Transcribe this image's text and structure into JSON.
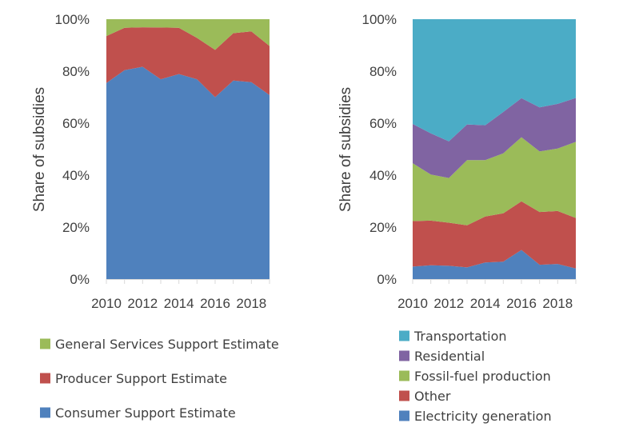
{
  "chart_data": [
    {
      "type": "area",
      "stacked": true,
      "title": "",
      "xlabel": "",
      "ylabel": "Share of subsidies",
      "x": [
        2010,
        2011,
        2012,
        2013,
        2014,
        2015,
        2016,
        2017,
        2018,
        2019
      ],
      "xticks": [
        "2010",
        "2012",
        "2014",
        "2016",
        "2018"
      ],
      "yticks": [
        "0%",
        "20%",
        "40%",
        "60%",
        "80%",
        "100%"
      ],
      "ylim": [
        0,
        100
      ],
      "grid": false,
      "legend_position": "bottom",
      "series": [
        {
          "name": "Consumer Support Estimate",
          "color": "#4f81bd",
          "values": [
            75.4,
            80.4,
            81.7,
            76.9,
            78.9,
            76.9,
            70.0,
            76.4,
            75.8,
            70.8
          ]
        },
        {
          "name": "Producer Support Estimate",
          "color": "#c0504d",
          "values": [
            18.1,
            16.3,
            15.2,
            19.9,
            17.8,
            15.9,
            18.2,
            18.2,
            19.5,
            18.9
          ]
        },
        {
          "name": "General Services Support Estimate",
          "color": "#9bbb59",
          "values": [
            6.5,
            3.3,
            3.1,
            3.2,
            3.3,
            7.2,
            11.8,
            5.4,
            4.7,
            10.3
          ]
        }
      ],
      "legend_order": [
        "General Services Support Estimate",
        "Producer Support Estimate",
        "Consumer Support Estimate"
      ]
    },
    {
      "type": "area",
      "stacked": true,
      "title": "",
      "xlabel": "",
      "ylabel": "Share of subsidies",
      "x": [
        2010,
        2011,
        2012,
        2013,
        2014,
        2015,
        2016,
        2017,
        2018,
        2019
      ],
      "xticks": [
        "2010",
        "2012",
        "2014",
        "2016",
        "2018"
      ],
      "yticks": [
        "0%",
        "20%",
        "40%",
        "60%",
        "80%",
        "100%"
      ],
      "ylim": [
        0,
        100
      ],
      "grid": false,
      "legend_position": "bottom",
      "series": [
        {
          "name": "Electricity generation",
          "color": "#4f81bd",
          "values": [
            4.8,
            5.3,
            5.1,
            4.5,
            6.4,
            6.7,
            11.2,
            5.5,
            5.8,
            4.1
          ]
        },
        {
          "name": "Other",
          "color": "#c0504d",
          "values": [
            17.5,
            17.2,
            16.6,
            16.2,
            17.7,
            18.6,
            18.7,
            20.3,
            20.4,
            19.4
          ]
        },
        {
          "name": "Fossil-fuel production",
          "color": "#9bbb59",
          "values": [
            22.3,
            17.7,
            17.2,
            25.1,
            21.7,
            23.1,
            24.7,
            23.3,
            24.0,
            29.3
          ]
        },
        {
          "name": "Residential",
          "color": "#8064a2",
          "values": [
            15.1,
            15.9,
            14.1,
            13.7,
            13.4,
            15.9,
            15.0,
            17.0,
            17.2,
            16.9
          ]
        },
        {
          "name": "Transportation",
          "color": "#4bacc6",
          "values": [
            40.3,
            43.9,
            47.0,
            40.5,
            40.8,
            35.7,
            30.4,
            33.9,
            32.6,
            30.3
          ]
        }
      ],
      "legend_order": [
        "Transportation",
        "Residential",
        "Fossil-fuel production",
        "Other",
        "Electricity generation"
      ]
    }
  ]
}
